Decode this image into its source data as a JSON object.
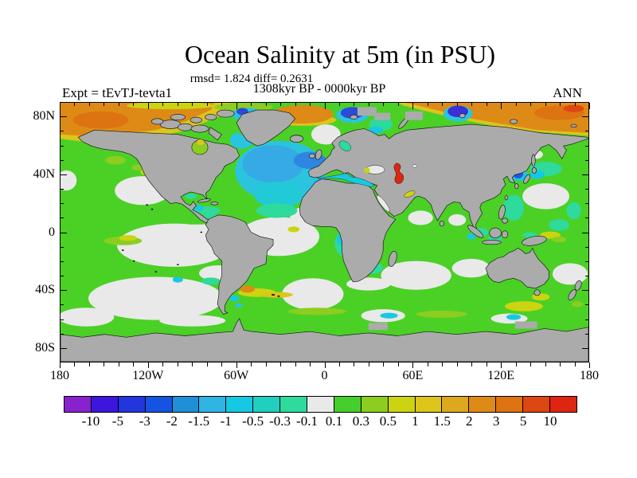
{
  "title": "Ocean Salinity at 5m (in PSU)",
  "stats_line": "rmsd= 1.824 diff= 0.2631",
  "period_line": "1308kyr BP - 0000kyr BP",
  "experiment_label": "Expt = tEvTJ-tevta1",
  "season_label": "ANN",
  "axes": {
    "lat_ticks": [
      {
        "label": "80N",
        "deg": 80
      },
      {
        "label": "40N",
        "deg": 40
      },
      {
        "label": "0",
        "deg": 0
      },
      {
        "label": "40S",
        "deg": -40
      },
      {
        "label": "80S",
        "deg": -80
      }
    ],
    "lon_ticks": [
      {
        "label": "180",
        "deg": -180
      },
      {
        "label": "120W",
        "deg": -120
      },
      {
        "label": "60W",
        "deg": -60
      },
      {
        "label": "0",
        "deg": 0
      },
      {
        "label": "60E",
        "deg": 60
      },
      {
        "label": "120E",
        "deg": 120
      },
      {
        "label": "180",
        "deg": 180
      }
    ]
  },
  "colorbar": {
    "labels": [
      "-10",
      "-5",
      "-3",
      "-2",
      "-1.5",
      "-1",
      "-0.5",
      "-0.3",
      "-0.1",
      "0.1",
      "0.3",
      "0.5",
      "1",
      "1.5",
      "2",
      "3",
      "5",
      "10"
    ],
    "colors": [
      "#8822cc",
      "#3d16dd",
      "#2336de",
      "#1554e0",
      "#1f8fd8",
      "#30b4e4",
      "#17c8e2",
      "#20cfc0",
      "#2eda9c",
      "#e9e9e9",
      "#46ce2c",
      "#8ccd20",
      "#ccd411",
      "#ddc51b",
      "#dda81e",
      "#dd8b16",
      "#dd7311",
      "#dd4711",
      "#dd2511"
    ]
  },
  "chart_data": {
    "type": "heatmap",
    "subtype": "filled-contour world map (equirectangular, dateline at edges)",
    "title": "Ocean Salinity at 5m (in PSU)",
    "variable": "ocean salinity difference at 5m depth",
    "units": "PSU",
    "season": "ANN",
    "experiment": "tEvTJ-tevta1",
    "comparison": "1308kyr BP - 0000kyr BP",
    "rmsd": 1.824,
    "diff": 0.2631,
    "lon_range": [
      -180,
      180
    ],
    "lat_range": [
      -90,
      90
    ],
    "lon_tick_interval_major": 60,
    "lat_tick_interval_major": 40,
    "tick_interval_minor": 10,
    "contour_levels": [
      -10,
      -5,
      -3,
      -2,
      -1.5,
      -1,
      -0.5,
      -0.3,
      -0.1,
      0.1,
      0.3,
      0.5,
      1,
      1.5,
      2,
      3,
      5,
      10
    ],
    "palette": [
      "#8822cc",
      "#3d16dd",
      "#2336de",
      "#1554e0",
      "#1f8fd8",
      "#30b4e4",
      "#17c8e2",
      "#20cfc0",
      "#2eda9c",
      "#e9e9e9",
      "#46ce2c",
      "#8ccd20",
      "#ccd411",
      "#ddc51b",
      "#dda81e",
      "#dd8b16",
      "#dd7311",
      "#dd4711",
      "#dd2511"
    ],
    "land_color": "#ababab",
    "legend_position": "bottom",
    "regional_values": [
      {
        "region": "Arctic Ocean, Beaufort/Chukchi side",
        "value_psu": "+1.5 to +5"
      },
      {
        "region": "Arctic Ocean, East Siberian/Laptev side",
        "value_psu": "+1.5 to +5 with -3 to -10 pockets (Kara Sea, Laptev Sea)"
      },
      {
        "region": "North Atlantic subpolar gyre (45-65N)",
        "value_psu": "-0.5 to -2"
      },
      {
        "region": "Davis Strait / Baffin Bay",
        "value_psu": "-0.5 to -1"
      },
      {
        "region": "Sea of Japan",
        "value_psu": "-2 to -3"
      },
      {
        "region": "Mediterranean Sea",
        "value_psu": "-0.5 to -1"
      },
      {
        "region": "Caspian Sea",
        "value_psu": "> +10"
      },
      {
        "region": "Black Sea",
        "value_psu": "-0.1 to +0.1"
      },
      {
        "region": "Hudson Bay",
        "value_psu": "+0.3 to +1.5"
      },
      {
        "region": "Persian Gulf",
        "value_psu": "+0.5 to +1"
      },
      {
        "region": "Subtropical gyres, all basins",
        "value_psu": "-0.1 to +0.1 (near zero)"
      },
      {
        "region": "Most mid/low-latitude open ocean",
        "value_psu": "+0.1 to +0.3"
      },
      {
        "region": "Patagonian shelf / Falklands",
        "value_psu": "+1.5 to +3"
      },
      {
        "region": "Caribbean and tropical W Atlantic patches",
        "value_psu": "-0.3 to -0.5"
      },
      {
        "region": "Kuroshio-Oyashio / W Pacific patches",
        "value_psu": "-0.3 to -0.5"
      },
      {
        "region": "Benguela region (SW Africa coast)",
        "value_psu": "-0.3 to -1"
      },
      {
        "region": "South of Australia / Tasman fringe",
        "value_psu": "+0.3 to +1"
      },
      {
        "region": "Southern Ocean 45-55S streaks",
        "value_psu": "+0.3 to +1.5"
      }
    ]
  }
}
